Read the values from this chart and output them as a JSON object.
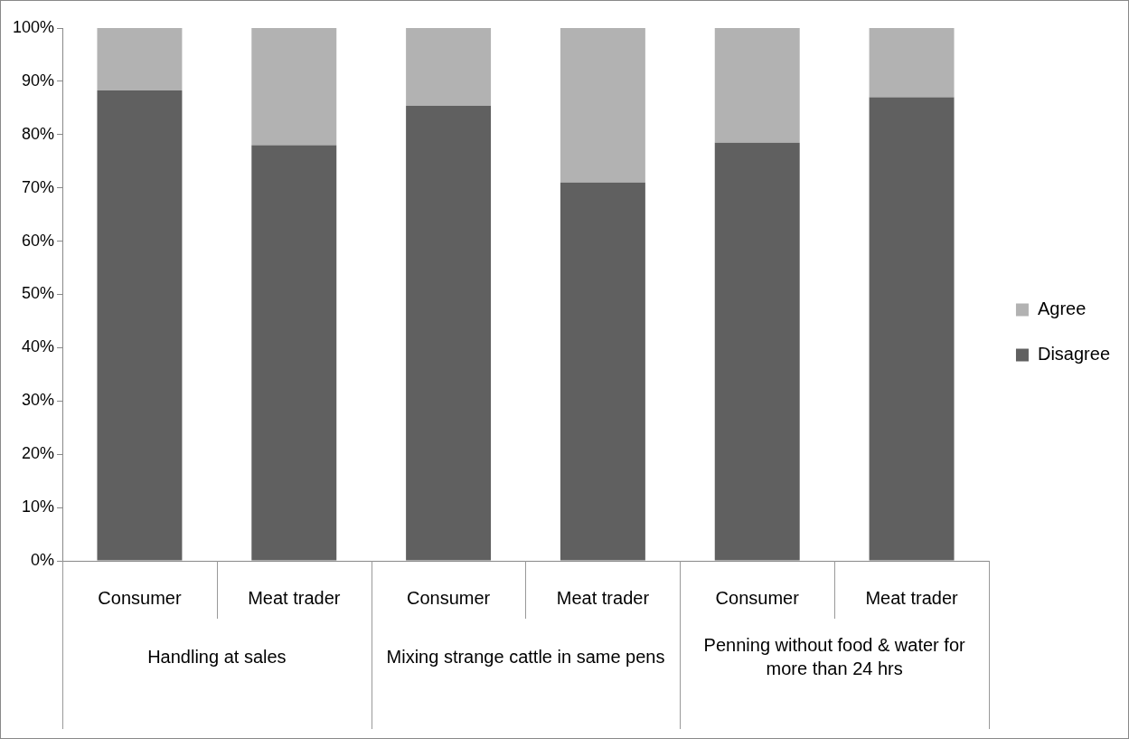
{
  "chart_data": {
    "type": "bar",
    "stacked": true,
    "categories": [
      "Consumer",
      "Meat trader",
      "Consumer",
      "Meat trader",
      "Consumer",
      "Meat trader"
    ],
    "series": [
      {
        "name": "Disagree",
        "color": "#606060",
        "values": [
          88.3,
          78,
          85.4,
          71,
          78.5,
          87
        ]
      },
      {
        "name": "Agree",
        "color": "#b2b2b2",
        "values": [
          11.7,
          22,
          14.6,
          29,
          21.5,
          13
        ]
      }
    ],
    "annotations": [
      "Handling at sales",
      "Mixing strange cattle in same pens",
      "Penning without food & water for more than 24 hrs"
    ],
    "ylim": [
      0,
      100
    ],
    "yticks": [
      {
        "value": 0,
        "label": "0%"
      },
      {
        "value": 10,
        "label": "10%"
      },
      {
        "value": 20,
        "label": "20%"
      },
      {
        "value": 30,
        "label": "30%"
      },
      {
        "value": 40,
        "label": "40%"
      },
      {
        "value": 50,
        "label": "50%"
      },
      {
        "value": 60,
        "label": "60%"
      },
      {
        "value": 70,
        "label": "70%"
      },
      {
        "value": 80,
        "label": "80%"
      },
      {
        "value": 90,
        "label": "90%"
      },
      {
        "value": 100,
        "label": "100%"
      }
    ],
    "grid": false,
    "legend": "right"
  }
}
